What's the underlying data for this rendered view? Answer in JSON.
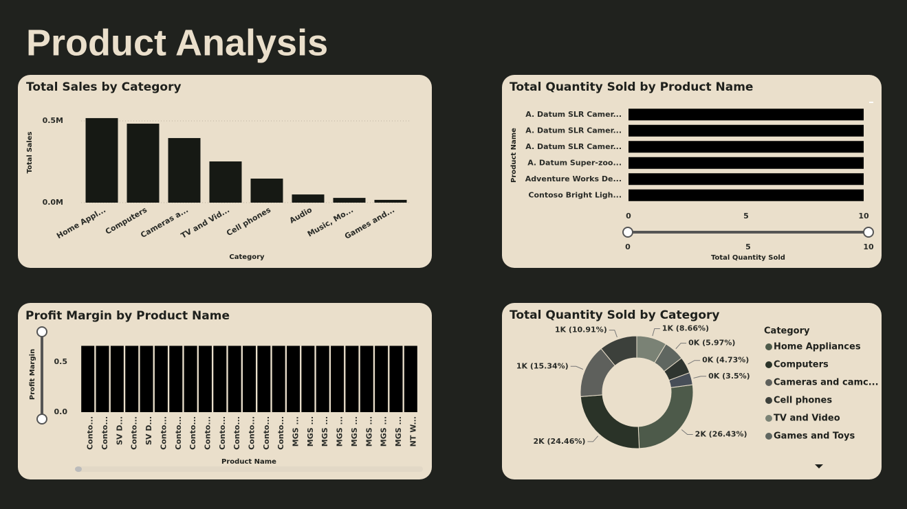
{
  "title": "Product Analysis",
  "chart_data": [
    {
      "type": "bar",
      "title": "Total Sales by Category",
      "x_label": "Category",
      "y_label": "Total Sales",
      "categories": [
        "Home Appl...",
        "Computers",
        "Cameras a...",
        "TV and Vid...",
        "Cell phones",
        "Audio",
        "Music, Mo...",
        "Games and..."
      ],
      "values": [
        517000,
        483000,
        395000,
        252000,
        147000,
        50000,
        29000,
        17000
      ],
      "color": "#161914",
      "ylim": [
        0,
        560000
      ],
      "yticks": [
        {
          "value": 0,
          "label": "0.0M"
        },
        {
          "value": 500000,
          "label": "0.5M"
        }
      ],
      "grid": true
    },
    {
      "type": "bar",
      "orientation": "horizontal",
      "title": "Total Quantity Sold by Product Name",
      "x_label": "Total Quantity Sold",
      "y_label": "Product Name",
      "categories": [
        "A. Datum SLR Camer...",
        "A. Datum SLR Camer...",
        "A. Datum SLR Camer...",
        "A. Datum Super-zoo...",
        "Adventure Works De...",
        "Contoso Bright Ligh..."
      ],
      "values": [
        10,
        10,
        10,
        10,
        10,
        10
      ],
      "color": "#000000",
      "xlim": [
        0,
        10
      ],
      "xticks": [
        0,
        5,
        10
      ],
      "grid": false
    },
    {
      "type": "bar",
      "title": "Profit Margin by Product Name",
      "x_label": "Product Name",
      "y_label": "Profit Margin",
      "categories": [
        "Conto...",
        "Conto...",
        "SV D...",
        "Conto...",
        "SV D...",
        "Conto...",
        "Conto...",
        "Conto...",
        "Conto...",
        "Conto...",
        "Conto...",
        "Conto...",
        "Conto...",
        "Conto...",
        "MGS ...",
        "MGS ...",
        "MGS ...",
        "MGS ...",
        "MGS ...",
        "MGS ...",
        "MGS ...",
        "MGS ...",
        "NT W..."
      ],
      "values": [
        0.66,
        0.66,
        0.66,
        0.66,
        0.66,
        0.66,
        0.66,
        0.66,
        0.66,
        0.66,
        0.66,
        0.66,
        0.66,
        0.66,
        0.66,
        0.66,
        0.66,
        0.66,
        0.66,
        0.66,
        0.66,
        0.66,
        0.66
      ],
      "color": "#000000",
      "ylim": [
        0,
        0.8
      ],
      "yticks": [
        {
          "value": 0,
          "label": "0.0"
        },
        {
          "value": 0.5,
          "label": "0.5"
        }
      ],
      "grid": false
    },
    {
      "type": "donut",
      "title": "Total Quantity Sold by Category",
      "legend_title": "Category",
      "categories": [
        "Home Appliances",
        "Computers",
        "Cameras and camc...",
        "Cell phones",
        "TV and Video",
        "Games and Toys",
        null,
        null
      ],
      "values": [
        26.43,
        24.46,
        15.34,
        10.91,
        8.66,
        5.97,
        4.73,
        3.5
      ],
      "value_labels": [
        "2K (26.43%)",
        "2K (24.46%)",
        "1K (15.34%)",
        "1K (10.91%)",
        "1K (8.66%)",
        "0K (5.97%)",
        "0K (4.73%)",
        "0K (3.5%)"
      ],
      "colors": [
        "#4d5a4a",
        "#2a3328",
        "#5e605c",
        "#3c403b",
        "#7a8275",
        "#5f6660",
        "#2f3530",
        "#474e58"
      ],
      "legend": "right"
    }
  ]
}
